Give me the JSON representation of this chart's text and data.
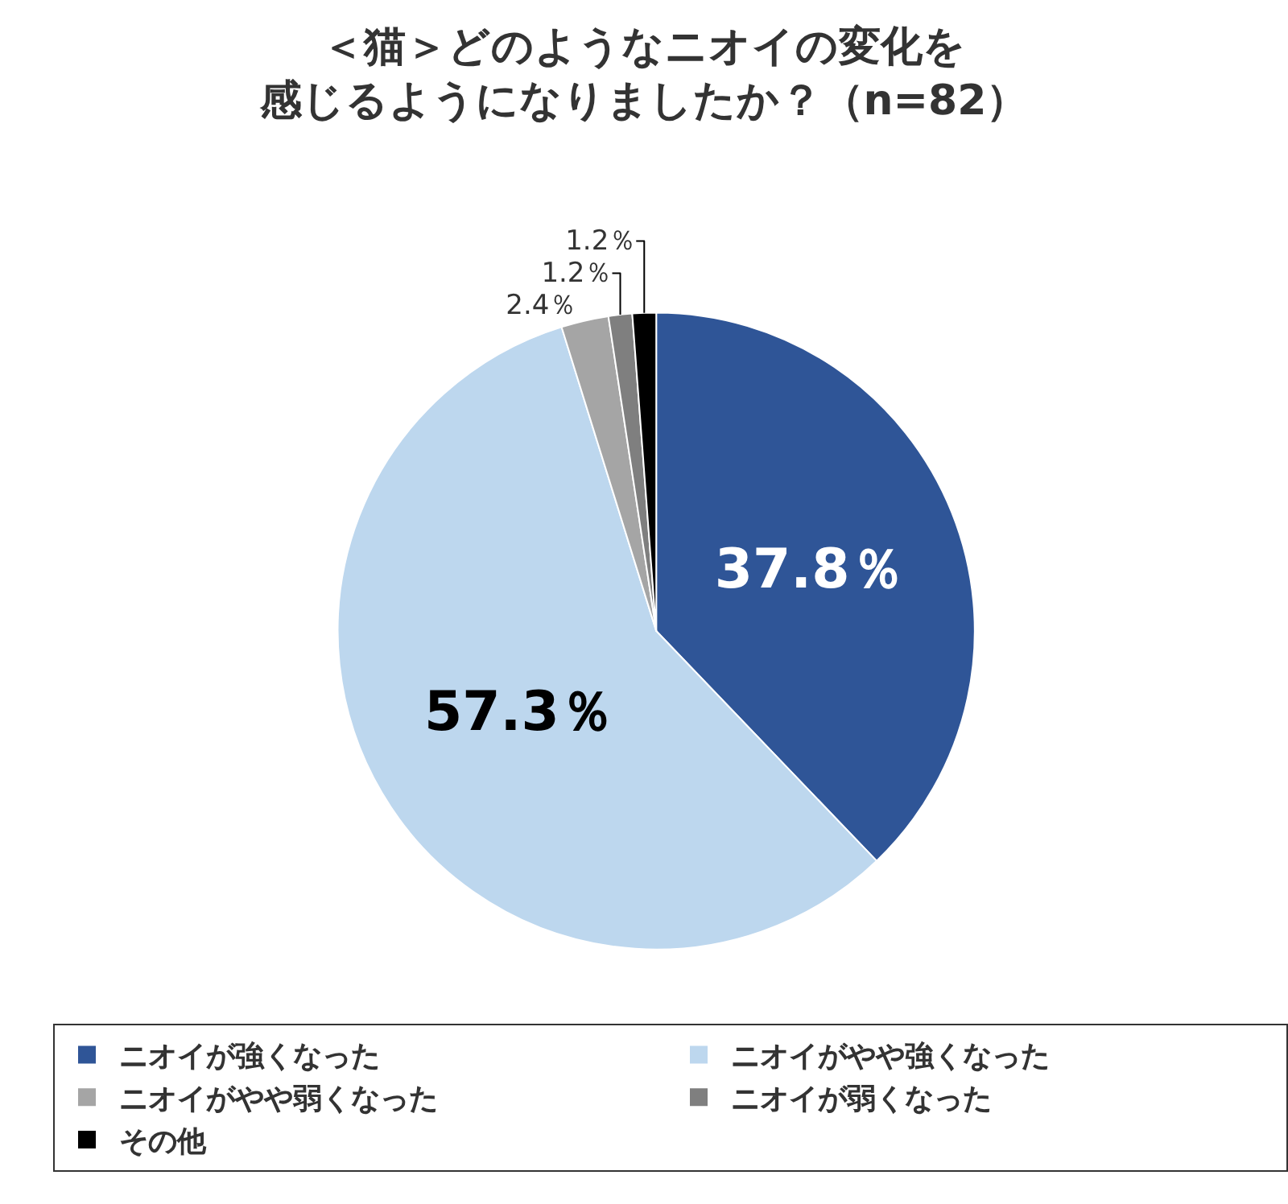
{
  "chart_data": {
    "type": "pie",
    "title": "＜猫＞どのようなニオイの変化を感じるようになりましたか？（n=82）",
    "categories": [
      "ニオイが強くなった",
      "ニオイがやや強くなった",
      "ニオイがやや弱くなった",
      "ニオイが弱くなった",
      "その他"
    ],
    "values": [
      37.8,
      57.3,
      2.4,
      1.2,
      1.2
    ],
    "colors": [
      "#2f5597",
      "#bdd7ee",
      "#a5a5a5",
      "#7f7f7f",
      "#000000"
    ],
    "value_labels": [
      "37.8％",
      "57.3％",
      "2.4％",
      "1.2％",
      "1.2％"
    ],
    "legend": "bottom"
  }
}
